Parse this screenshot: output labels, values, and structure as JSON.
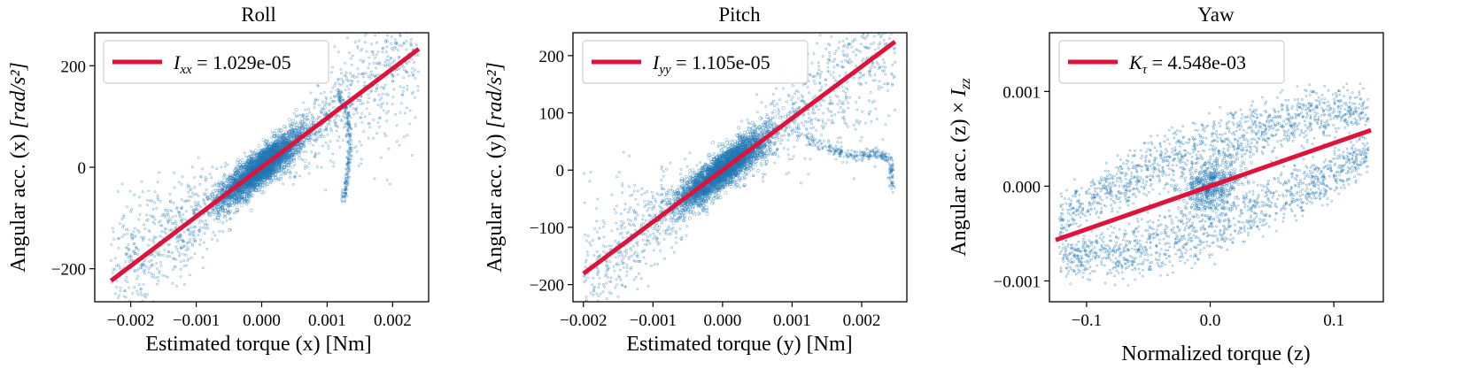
{
  "colors": {
    "scatter": "#1f77b4",
    "fit": "#dc143c",
    "frame": "#000000"
  },
  "chart_data": [
    {
      "type": "scatter",
      "title": "Roll",
      "xlabel": "Estimated torque (x) [Nm]",
      "ylabel_main": "Angular acc. (x) ",
      "ylabel_unit": "[rad/s²]",
      "xlim": [
        -0.00255,
        0.00255
      ],
      "ylim": [
        -265,
        265
      ],
      "xticks": [
        -0.002,
        -0.001,
        0.0,
        0.001,
        0.002
      ],
      "xtick_labels": [
        "−0.002",
        "−0.001",
        "0.000",
        "0.001",
        "0.002"
      ],
      "yticks": [
        -200,
        0,
        200
      ],
      "ytick_labels": [
        "−200",
        "0",
        "200"
      ],
      "fit": {
        "slope": 97182,
        "intercept": 0,
        "x_range": [
          -0.0023,
          0.0024
        ]
      },
      "legend": {
        "symbol": "I",
        "subscript": "xx",
        "value_text": " = 1.029e-05",
        "position": "upper-left"
      },
      "cloud": {
        "spread": 18,
        "outlier_fraction": 0.08,
        "outlier_spread": 55
      },
      "branch": [
        [
          0.00115,
          150
        ],
        [
          0.0013,
          110
        ],
        [
          0.00135,
          40
        ],
        [
          0.0013,
          -20
        ],
        [
          0.00125,
          -70
        ]
      ]
    },
    {
      "type": "scatter",
      "title": "Pitch",
      "xlabel": "Estimated torque (y) [Nm]",
      "ylabel_main": "Angular acc. (y) ",
      "ylabel_unit": "[rad/s²]",
      "xlim": [
        -0.00215,
        0.00265
      ],
      "ylim": [
        -230,
        240
      ],
      "xticks": [
        -0.002,
        -0.001,
        0.0,
        0.001,
        0.002
      ],
      "xtick_labels": [
        "−0.002",
        "−0.001",
        "0.000",
        "0.001",
        "0.002"
      ],
      "yticks": [
        -200,
        -100,
        0,
        100,
        200
      ],
      "ytick_labels": [
        "−200",
        "−100",
        "0",
        "100",
        "200"
      ],
      "fit": {
        "slope": 90498,
        "intercept": 0,
        "x_range": [
          -0.002,
          0.00248
        ]
      },
      "legend": {
        "symbol": "I",
        "subscript": "yy",
        "value_text": " = 1.105e-05",
        "position": "upper-left"
      },
      "cloud": {
        "spread": 16,
        "outlier_fraction": 0.08,
        "outlier_spread": 50
      },
      "branch": [
        [
          0.0011,
          60
        ],
        [
          0.0016,
          35
        ],
        [
          0.0019,
          25
        ],
        [
          0.0022,
          30
        ],
        [
          0.0024,
          20
        ],
        [
          0.00245,
          -40
        ]
      ]
    },
    {
      "type": "scatter",
      "title": "Yaw",
      "xlabel": "Normalized torque (z)",
      "ylabel_main": "Angular acc. (z) × ",
      "ylabel_sym": "I",
      "ylabel_sub": "zz",
      "xlim": [
        -0.13,
        0.14
      ],
      "ylim": [
        -0.00122,
        0.00162
      ],
      "xticks": [
        -0.1,
        0.0,
        0.1
      ],
      "xtick_labels": [
        "−0.1",
        "0.0",
        "0.1"
      ],
      "yticks": [
        -0.001,
        0.0,
        0.001
      ],
      "ytick_labels": [
        "−0.001",
        "0.000",
        "0.001"
      ],
      "fit": {
        "slope": 0.004548,
        "intercept": 0,
        "x_range": [
          -0.125,
          0.13
        ]
      },
      "legend": {
        "symbol": "K",
        "subscript": "τ",
        "value_text": " = 4.548e-03",
        "position": "upper-left"
      }
    }
  ]
}
